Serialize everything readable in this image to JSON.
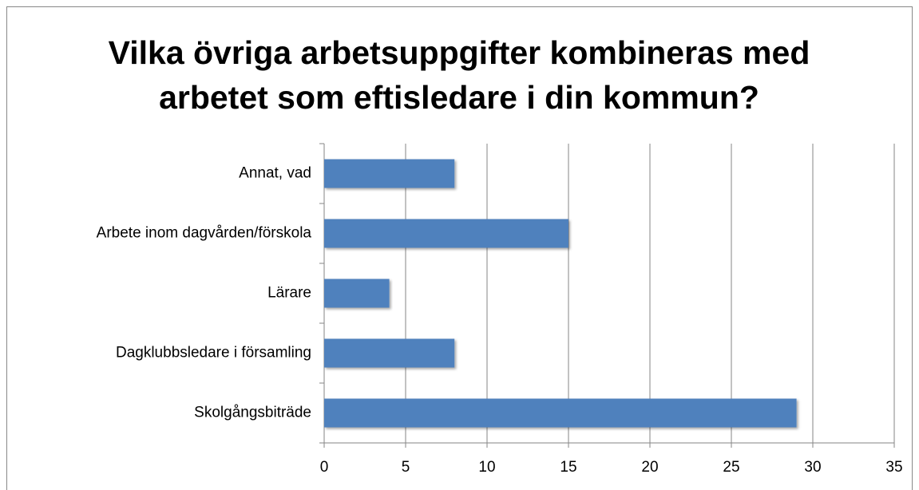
{
  "chart_data": {
    "type": "bar",
    "orientation": "horizontal",
    "title": "Vilka övriga arbetsuppgifter kombineras med arbetet som eftisledare i din kommun?",
    "categories": [
      "Annat, vad",
      "Arbete inom dagvården/förskola",
      "Lärare",
      "Dagklubbsledare i församling",
      "Skolgångsbiträde"
    ],
    "values": [
      8,
      15,
      4,
      8,
      29
    ],
    "color": "#4f81bd",
    "xlim": [
      0,
      35
    ],
    "xticks": [
      0,
      5,
      10,
      15,
      20,
      25,
      30,
      35
    ],
    "grid": true
  }
}
